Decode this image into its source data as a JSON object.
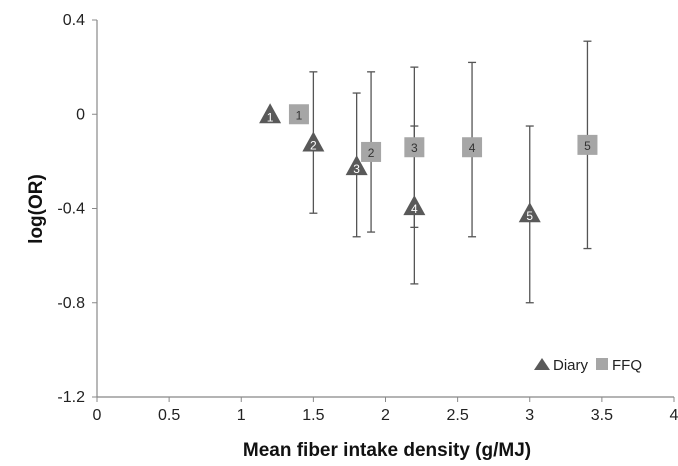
{
  "chart_data": {
    "type": "scatter",
    "title": "",
    "xlabel": "Mean fiber intake density (g/MJ)",
    "ylabel": "log(OR)",
    "xlim": [
      0,
      4
    ],
    "ylim": [
      -1.2,
      0.4
    ],
    "x_ticks": [
      "0",
      "0.5",
      "1",
      "1.5",
      "2",
      "2.5",
      "3",
      "3.5",
      "4"
    ],
    "y_ticks": [
      "0.4",
      "0",
      "-0.4",
      "-0.8",
      "-1.2"
    ],
    "grid": false,
    "legend_position": "bottom-right",
    "series": [
      {
        "name": "Diary",
        "marker": "triangle",
        "color": "#595959",
        "points": [
          {
            "label": "1",
            "x": 1.2,
            "y": 0.0,
            "lower": null,
            "upper": null
          },
          {
            "label": "2",
            "x": 1.5,
            "y": -0.12,
            "lower": -0.42,
            "upper": 0.18
          },
          {
            "label": "3",
            "x": 1.8,
            "y": -0.22,
            "lower": -0.52,
            "upper": 0.09
          },
          {
            "label": "4",
            "x": 2.2,
            "y": -0.39,
            "lower": -0.72,
            "upper": -0.05
          },
          {
            "label": "5",
            "x": 3.0,
            "y": -0.42,
            "lower": -0.8,
            "upper": -0.05
          }
        ]
      },
      {
        "name": "FFQ",
        "marker": "square",
        "color": "#a6a6a6",
        "points": [
          {
            "label": "1",
            "x": 1.4,
            "y": 0.0,
            "lower": null,
            "upper": null
          },
          {
            "label": "2",
            "x": 1.9,
            "y": -0.16,
            "lower": -0.5,
            "upper": 0.18
          },
          {
            "label": "3",
            "x": 2.2,
            "y": -0.14,
            "lower": -0.48,
            "upper": 0.2
          },
          {
            "label": "4",
            "x": 2.6,
            "y": -0.14,
            "lower": -0.52,
            "upper": 0.22
          },
          {
            "label": "5",
            "x": 3.4,
            "y": -0.13,
            "lower": -0.57,
            "upper": 0.31
          }
        ]
      }
    ]
  }
}
